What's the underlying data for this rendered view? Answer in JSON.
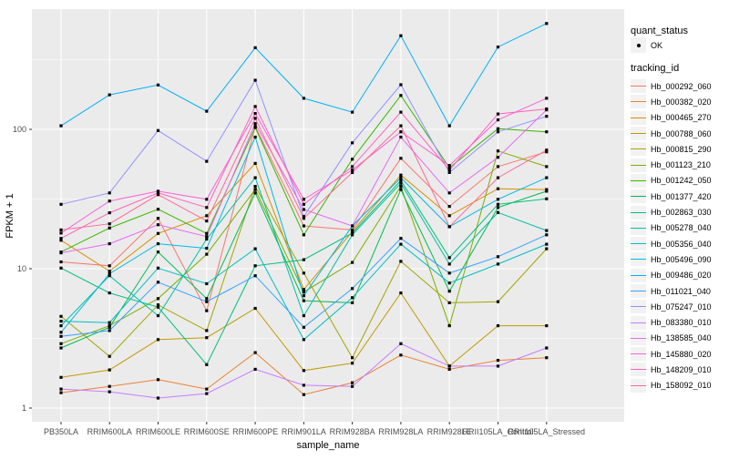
{
  "axes": {
    "x_title": "sample_name",
    "y_title": "FPKM + 1",
    "y_tick_labels": [
      "100",
      "10",
      "1"
    ]
  },
  "legend": {
    "quant_status_title": "quant_status",
    "quant_status_items": [
      {
        "label": "OK"
      }
    ],
    "tracking_title": "tracking_id"
  },
  "colors": {
    "panel_background": "#EBEBEB",
    "gridline": "#FFFFFF",
    "tick_mark": "#333333",
    "tick_label": "#4D4D4D",
    "point": "#000000",
    "legend_key_background": "#F2F2F2"
  },
  "chart_data": {
    "type": "line",
    "title": "",
    "xlabel": "sample_name",
    "ylabel": "FPKM + 1",
    "y_scale": "log10",
    "y_ticks": [
      1,
      10,
      100
    ],
    "y_minor_ticks": [
      3.162,
      31.62,
      316.2
    ],
    "ylim": [
      0.93,
      730
    ],
    "grid": true,
    "legend_position": "right",
    "point_shape": "small black square",
    "categories": [
      "PB350LA",
      "RRIM600LA",
      "RRIM600LE",
      "RRIM600SE",
      "RRIM600PE",
      "RRIM901LA",
      "RRIM928BA",
      "RRIM928LA",
      "RRIM928LE",
      "RRII105LA_Control",
      "RRII105LA_Stressed"
    ],
    "series": [
      {
        "name": "Hb_000292_060",
        "color": "#F8766D",
        "values": [
          11.2,
          10.5,
          23,
          5.0,
          105,
          20.3,
          19,
          62,
          28,
          54,
          69
        ]
      },
      {
        "name": "Hb_000382_020",
        "color": "#EA8331",
        "values": [
          1.29,
          1.43,
          1.6,
          1.37,
          2.5,
          1.25,
          1.52,
          2.4,
          1.9,
          2.2,
          2.3
        ]
      },
      {
        "name": "Hb_000465_270",
        "color": "#D89000",
        "values": [
          16,
          9.6,
          17.9,
          24,
          57,
          7.1,
          18.5,
          47,
          24,
          37.5,
          37
        ]
      },
      {
        "name": "Hb_000788_060",
        "color": "#C09B00",
        "values": [
          1.66,
          1.88,
          3.1,
          3.2,
          5.2,
          1.86,
          2.1,
          6.7,
          2.0,
          3.9,
          3.9
        ]
      },
      {
        "name": "Hb_000815_290",
        "color": "#A3A500",
        "values": [
          4.55,
          2.35,
          5.5,
          3.6,
          39,
          9.3,
          2.3,
          11.3,
          5.7,
          5.8,
          13.9
        ]
      },
      {
        "name": "Hb_001123_210",
        "color": "#7CAE00",
        "values": [
          2.9,
          3.9,
          6.1,
          12.7,
          37,
          6.8,
          11.1,
          39,
          3.9,
          70,
          54
        ]
      },
      {
        "name": "Hb_001242_050",
        "color": "#39B600",
        "values": [
          13.2,
          19.6,
          26.7,
          17.9,
          103,
          17.5,
          61,
          175,
          53,
          101,
          96
        ]
      },
      {
        "name": "Hb_001377_420",
        "color": "#00BB4E",
        "values": [
          2.7,
          3.8,
          13.2,
          6.1,
          35,
          5.9,
          5.7,
          37,
          6.9,
          27.5,
          36
        ]
      },
      {
        "name": "Hb_002863_030",
        "color": "#00BF7D",
        "values": [
          10.1,
          6.7,
          5.3,
          2.05,
          10.5,
          11.6,
          18,
          43,
          12,
          29,
          31.7
        ]
      },
      {
        "name": "Hb_005278_040",
        "color": "#00C1A3",
        "values": [
          3.9,
          8.9,
          4.6,
          16.3,
          45,
          4.6,
          17.5,
          41,
          10.8,
          25.3,
          18.8
        ]
      },
      {
        "name": "Hb_005356_040",
        "color": "#00BFC4",
        "values": [
          4.2,
          4.1,
          10.1,
          7.8,
          13.9,
          3.1,
          6.2,
          15,
          7.9,
          10.8,
          15
        ]
      },
      {
        "name": "Hb_005496_090",
        "color": "#00BAE0",
        "values": [
          3.5,
          9.2,
          15.1,
          14,
          88,
          6.4,
          20.3,
          45,
          20,
          31.5,
          45
        ]
      },
      {
        "name": "Hb_009486_020",
        "color": "#00B0F6",
        "values": [
          106,
          177,
          208,
          135,
          385,
          167,
          133,
          470,
          106,
          390,
          575
        ]
      },
      {
        "name": "Hb_011021_040",
        "color": "#35A2FF",
        "values": [
          3.27,
          3.6,
          8.0,
          5.8,
          8.9,
          3.8,
          7.2,
          16.5,
          9.3,
          12.2,
          17.5
        ]
      },
      {
        "name": "Hb_075247_010",
        "color": "#9590FF",
        "values": [
          29,
          35,
          98,
          59,
          225,
          23.7,
          80,
          209,
          49,
          96,
          124
        ]
      },
      {
        "name": "Hb_083380_010",
        "color": "#C77CFF",
        "values": [
          1.37,
          1.31,
          1.18,
          1.27,
          1.9,
          1.46,
          1.43,
          2.9,
          2.0,
          2.0,
          2.7
        ]
      },
      {
        "name": "Hb_138585_040",
        "color": "#E76BF3",
        "values": [
          13,
          15.1,
          20.7,
          17,
          110,
          26.6,
          20.3,
          88,
          35,
          63,
          138
        ]
      },
      {
        "name": "Hb_145880_020",
        "color": "#FA62DB",
        "values": [
          18,
          30.6,
          36,
          31.5,
          130,
          31.5,
          51,
          96,
          55,
          117,
          167
        ]
      },
      {
        "name": "Hb_148209_010",
        "color": "#FF62BC",
        "values": [
          16.5,
          25.2,
          35,
          27.5,
          146,
          29,
          54,
          133,
          51,
          129,
          140
        ]
      },
      {
        "name": "Hb_158092_010",
        "color": "#FF6A98",
        "values": [
          19,
          21,
          34,
          22,
          120,
          23,
          49,
          106,
          20,
          45,
          71
        ]
      }
    ]
  }
}
